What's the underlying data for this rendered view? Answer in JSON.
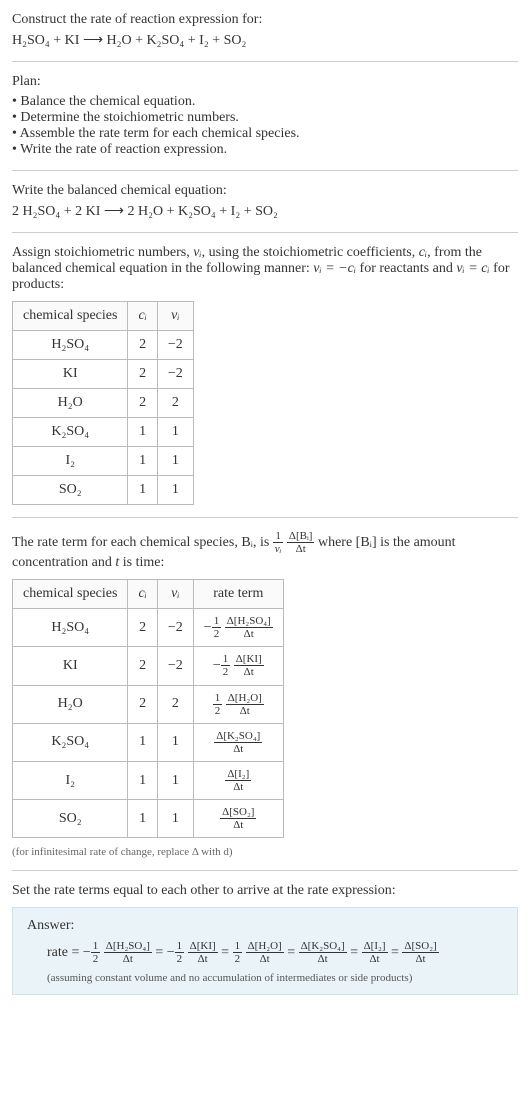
{
  "intro": {
    "prompt": "Construct the rate of reaction expression for:",
    "equation_parts": {
      "lhs": "H₂SO₄ + KI",
      "arrow": "⟶",
      "rhs": "H₂O + K₂SO₄ + I₂ + SO₂"
    }
  },
  "plan": {
    "heading": "Plan:",
    "items": [
      "Balance the chemical equation.",
      "Determine the stoichiometric numbers.",
      "Assemble the rate term for each chemical species.",
      "Write the rate of reaction expression."
    ]
  },
  "balanced": {
    "heading": "Write the balanced chemical equation:",
    "equation": "2 H₂SO₄ + 2 KI ⟶ 2 H₂O + K₂SO₄ + I₂ + SO₂"
  },
  "stoich": {
    "heading_pre": "Assign stoichiometric numbers, ",
    "nu": "νᵢ",
    "heading_mid1": ", using the stoichiometric coefficients, ",
    "ci": "cᵢ",
    "heading_mid2": ", from the balanced chemical equation in the following manner: ",
    "rel_reactants": "νᵢ = −cᵢ",
    "for_reactants": " for reactants and ",
    "rel_products": "νᵢ = cᵢ",
    "for_products": " for products:",
    "table": {
      "columns": [
        "chemical species",
        "cᵢ",
        "νᵢ"
      ],
      "rows": [
        [
          "H₂SO₄",
          "2",
          "−2"
        ],
        [
          "KI",
          "2",
          "−2"
        ],
        [
          "H₂O",
          "2",
          "2"
        ],
        [
          "K₂SO₄",
          "1",
          "1"
        ],
        [
          "I₂",
          "1",
          "1"
        ],
        [
          "SO₂",
          "1",
          "1"
        ]
      ]
    }
  },
  "rateterm": {
    "text_pre": "The rate term for each chemical species, Bᵢ, is ",
    "frac_coeff_num": "1",
    "frac_coeff_den": "νᵢ",
    "frac_delta_num": "Δ[Bᵢ]",
    "frac_delta_den": "Δt",
    "text_mid": " where [Bᵢ] is the amount concentration and ",
    "t_var": "t",
    "text_post": " is time:",
    "table": {
      "columns": [
        "chemical species",
        "cᵢ",
        "νᵢ",
        "rate term"
      ],
      "rows": [
        {
          "species": "H₂SO₄",
          "c": "2",
          "nu": "−2",
          "coeff": "−",
          "cnum": "1",
          "cden": "2",
          "dnum": "Δ[H₂SO₄]",
          "dden": "Δt"
        },
        {
          "species": "KI",
          "c": "2",
          "nu": "−2",
          "coeff": "−",
          "cnum": "1",
          "cden": "2",
          "dnum": "Δ[KI]",
          "dden": "Δt"
        },
        {
          "species": "H₂O",
          "c": "2",
          "nu": "2",
          "coeff": "",
          "cnum": "1",
          "cden": "2",
          "dnum": "Δ[H₂O]",
          "dden": "Δt"
        },
        {
          "species": "K₂SO₄",
          "c": "1",
          "nu": "1",
          "coeff": "",
          "cnum": "",
          "cden": "",
          "dnum": "Δ[K₂SO₄]",
          "dden": "Δt"
        },
        {
          "species": "I₂",
          "c": "1",
          "nu": "1",
          "coeff": "",
          "cnum": "",
          "cden": "",
          "dnum": "Δ[I₂]",
          "dden": "Δt"
        },
        {
          "species": "SO₂",
          "c": "1",
          "nu": "1",
          "coeff": "",
          "cnum": "",
          "cden": "",
          "dnum": "Δ[SO₂]",
          "dden": "Δt"
        }
      ]
    },
    "note": "(for infinitesimal rate of change, replace Δ with d)"
  },
  "final": {
    "heading": "Set the rate terms equal to each other to arrive at the rate expression:",
    "answer_label": "Answer:",
    "rate_prefix": "rate = ",
    "terms": [
      {
        "sign": "−",
        "cnum": "1",
        "cden": "2",
        "dnum": "Δ[H₂SO₄]",
        "dden": "Δt"
      },
      {
        "sign": "= −",
        "cnum": "1",
        "cden": "2",
        "dnum": "Δ[KI]",
        "dden": "Δt"
      },
      {
        "sign": "= ",
        "cnum": "1",
        "cden": "2",
        "dnum": "Δ[H₂O]",
        "dden": "Δt"
      },
      {
        "sign": "= ",
        "cnum": "",
        "cden": "",
        "dnum": "Δ[K₂SO₄]",
        "dden": "Δt"
      },
      {
        "sign": "= ",
        "cnum": "",
        "cden": "",
        "dnum": "Δ[I₂]",
        "dden": "Δt"
      },
      {
        "sign": "= ",
        "cnum": "",
        "cden": "",
        "dnum": "Δ[SO₂]",
        "dden": "Δt"
      }
    ],
    "assumption": "(assuming constant volume and no accumulation of intermediates or side products)"
  },
  "colors": {
    "text": "#333333",
    "rule": "#cccccc",
    "table_border": "#bbbbbb",
    "answer_bg": "#eaf4f8",
    "answer_border": "#cfe3eb"
  }
}
